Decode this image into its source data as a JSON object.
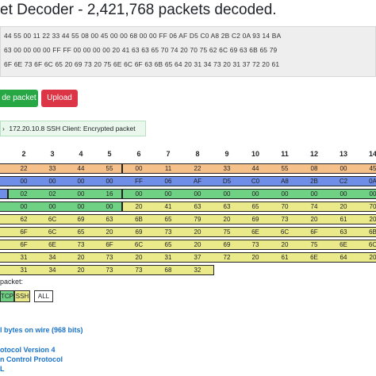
{
  "title": "et Decoder - 2,421,768 packets decoded.",
  "hex_lines": [
    "44 55 00 11 22 33 44 55 08 00 45 00 00 68 00 00 FF 06 AF D5 C0 A8 2B C2 0A 93 14 BA",
    "63 00 00 00 00 FF FF 00 00 00 00 20 41 63 63 65 70 74 20 70 75 62 6C 69 63 6B 65 79",
    "6F 6E 73 6F 6C 65 20 69 73 20 75 6E 6C 6F 63 6B 65 64 20 31 34 73 20 31 37 72 20 61"
  ],
  "buttons": {
    "decode": "de packet",
    "upload": "Upload"
  },
  "summary": "172.20.10.8 SSH Client: Encrypted packet",
  "columns": [
    "2",
    "3",
    "4",
    "5",
    "6",
    "7",
    "8",
    "9",
    "10",
    "11",
    "12",
    "13",
    "14"
  ],
  "rows": [
    [
      "22",
      "33",
      "44",
      "55",
      "00",
      "11",
      "22",
      "33",
      "44",
      "55",
      "08",
      "00",
      "45"
    ],
    [
      "00",
      "00",
      "00",
      "00",
      "FF",
      "06",
      "AF",
      "D5",
      "C0",
      "A8",
      "2B",
      "C2",
      "0A"
    ],
    [
      "02",
      "02",
      "00",
      "16",
      "00",
      "00",
      "00",
      "00",
      "00",
      "00",
      "00",
      "00",
      "00"
    ],
    [
      "00",
      "00",
      "00",
      "00",
      "20",
      "41",
      "63",
      "63",
      "65",
      "70",
      "74",
      "20",
      "70"
    ],
    [
      "62",
      "6C",
      "69",
      "63",
      "6B",
      "65",
      "79",
      "20",
      "69",
      "73",
      "20",
      "61",
      "20"
    ],
    [
      "6F",
      "6C",
      "65",
      "20",
      "69",
      "73",
      "20",
      "75",
      "6E",
      "6C",
      "6F",
      "63",
      "6B"
    ],
    [
      "6F",
      "6E",
      "73",
      "6F",
      "6C",
      "65",
      "20",
      "69",
      "73",
      "20",
      "75",
      "6E",
      "6C"
    ],
    [
      "31",
      "34",
      "20",
      "73",
      "20",
      "31",
      "37",
      "72",
      "20",
      "61",
      "6E",
      "64",
      "20"
    ],
    [
      "31",
      "34",
      "20",
      "73",
      "73",
      "68",
      "32",
      ""
    ]
  ],
  "colors": {
    "ethernet": "#f5c08a",
    "ip": "#6e8ee8",
    "tcp": "#6fd184",
    "ssh": "#eaea8a",
    "summary_bg": "#e9f7ec",
    "link": "#1a73c9",
    "green": "#28a745",
    "red": "#dc3545"
  },
  "filter": {
    "label": "packet:",
    "chips": [
      "TCP",
      "SSH",
      "ALL"
    ]
  },
  "details": {
    "wire": "l bytes on wire (968 bits)",
    "ipv4": "otocol Version 4",
    "tcp": "n Control Protocol",
    "more": "L"
  }
}
